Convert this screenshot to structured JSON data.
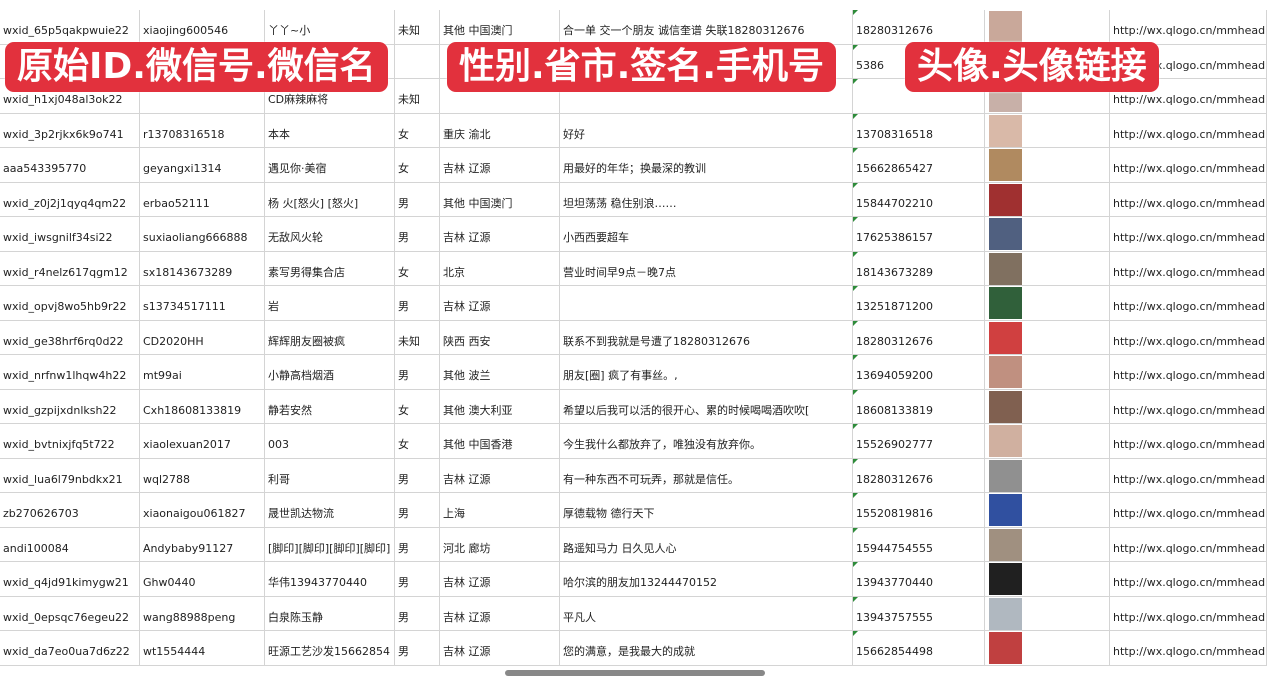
{
  "banners": [
    "原始ID.微信号.微信名",
    "性别.省市.签名.手机号",
    "头像.头像链接"
  ],
  "avatar_colors": [
    "#c9a89a",
    "#6a7aa0",
    "#c8b0a8",
    "#d9b9a8",
    "#b08a60",
    "#a03030",
    "#506080",
    "#807060",
    "#30603a",
    "#d04040",
    "#c09080",
    "#806050",
    "#d0b0a0",
    "#909090",
    "#3050a0",
    "#a09080",
    "#202020",
    "#b0b8c0",
    "#c04040",
    "#5070c0"
  ],
  "rows": [
    [
      "wxid_65p5qakpwuie22",
      "xiaojing600546",
      "丫丫~小",
      "未知",
      "其他 中国澳门",
      "合一单 交一个朋友 诚信奎谱 失联18280312676",
      "18280312676",
      "",
      "http://wx.qlogo.cn/mmhead"
    ],
    [
      "",
      "",
      "",
      "",
      "",
      "",
      "5386",
      "",
      "http://wx.qlogo.cn/mmhead"
    ],
    [
      "wxid_h1xj048al3ok22",
      "",
      "CD麻辣麻将",
      "未知",
      "",
      "",
      "",
      "",
      "http://wx.qlogo.cn/mmhead"
    ],
    [
      "wxid_3p2rjkx6k9o741",
      "r13708316518",
      "本本",
      "女",
      "重庆 渝北",
      "好好",
      "13708316518",
      "",
      "http://wx.qlogo.cn/mmhead"
    ],
    [
      "aaa543395770",
      "geyangxi1314",
      "遇见你·美宿",
      "女",
      "吉林 辽源",
      "用最好的年华；换最深的教训",
      "15662865427",
      "",
      "http://wx.qlogo.cn/mmhead"
    ],
    [
      "wxid_z0j2j1qyq4qm22",
      "erbao52111",
      "杨 火[怒火] [怒火]",
      "男",
      "其他 中国澳门",
      "坦坦荡荡 稳住别浪……",
      "15844702210",
      "",
      "http://wx.qlogo.cn/mmhead"
    ],
    [
      "wxid_iwsgnilf34si22",
      "suxiaoliang666888",
      "无敌风火轮",
      "男",
      "吉林 辽源",
      "小西西要超车",
      "17625386157",
      "",
      "http://wx.qlogo.cn/mmhead"
    ],
    [
      "wxid_r4nelz617qgm12",
      "sx18143673289",
      "素写男得集合店",
      "女",
      "北京",
      "营业时间早9点－晚7点",
      "18143673289",
      "",
      "http://wx.qlogo.cn/mmhead"
    ],
    [
      "wxid_opvj8wo5hb9r22",
      "s13734517111",
      "岩",
      "男",
      "吉林 辽源",
      "",
      "13251871200",
      "",
      "http://wx.qlogo.cn/mmhead"
    ],
    [
      "wxid_ge38hrf6rq0d22",
      "CD2020HH",
      "辉辉朋友圈被疯",
      "未知",
      "陕西 西安",
      "联系不到我就是号遭了18280312676",
      "18280312676",
      "",
      "http://wx.qlogo.cn/mmhead"
    ],
    [
      "wxid_nrfnw1lhqw4h22",
      "mt99ai",
      "小静高档烟酒",
      "男",
      "其他 波兰",
      "朋友[圈] 疯了有事丝。,",
      "13694059200",
      "",
      "http://wx.qlogo.cn/mmhead"
    ],
    [
      "wxid_gzpijxdnlksh22",
      "Cxh18608133819",
      "静若安然",
      "女",
      "其他 澳大利亚",
      "希望以后我可以活的很开心、累的时候喝喝酒吹吹[",
      "18608133819",
      "",
      "http://wx.qlogo.cn/mmhead"
    ],
    [
      "wxid_bvtnixjfq5t722",
      "xiaolexuan2017",
      "003",
      "女",
      "其他 中国香港",
      "今生我什么都放弃了，唯独没有放弃你。",
      "15526902777",
      "",
      "http://wx.qlogo.cn/mmhead"
    ],
    [
      "wxid_lua6l79nbdkx21",
      "wql2788",
      "利哥",
      "男",
      "吉林 辽源",
      "有一种东西不可玩弄，那就是信任。",
      "18280312676",
      "",
      "http://wx.qlogo.cn/mmhead"
    ],
    [
      "zb270626703",
      "xiaonaigou061827",
      "晟世凯达物流",
      "男",
      "上海",
      "厚德载物 德行天下",
      "15520819816",
      "",
      "http://wx.qlogo.cn/mmhead"
    ],
    [
      "andi100084",
      "Andybaby91127",
      "[脚印][脚印][脚印][脚印]",
      "男",
      "河北 廊坊",
      "路遥知马力 日久见人心",
      "15944754555",
      "",
      "http://wx.qlogo.cn/mmhead"
    ],
    [
      "wxid_q4jd91kimygw21",
      "Ghw0440",
      "华伟13943770440",
      "男",
      "吉林 辽源",
      "哈尔滨的朋友加13244470152",
      "13943770440",
      "",
      "http://wx.qlogo.cn/mmhead"
    ],
    [
      "wxid_0epsqc76egeu22",
      "wang88988peng",
      "白泉陈玉静",
      "男",
      "吉林 辽源",
      "平凡人",
      "13943757555",
      "",
      "http://wx.qlogo.cn/mmhead"
    ],
    [
      "wxid_da7eo0ua7d6z22",
      "wt1554444",
      "旺源工艺沙发15662854",
      "男",
      "吉林 辽源",
      "您的满意，是我最大的成就",
      "15662854498",
      "",
      "http://wx.qlogo.cn/mmhead"
    ]
  ]
}
